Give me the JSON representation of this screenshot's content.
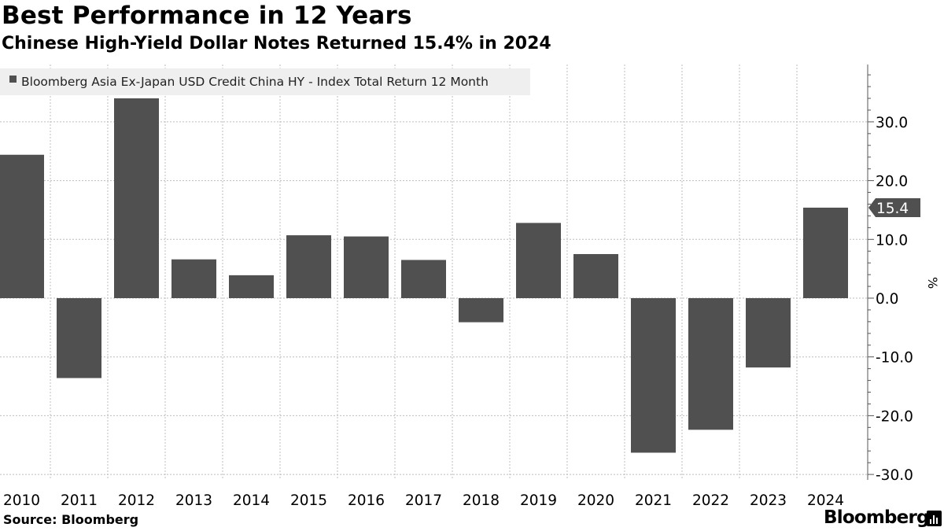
{
  "title": "Best Performance in 12 Years",
  "subtitle": "Chinese High-Yield Dollar Notes Returned 15.4% in 2024",
  "source": "Source: Bloomberg",
  "brand": "Bloomberg",
  "colors": {
    "bar": "#505050",
    "grid": "#bdbdbd",
    "legend_bg": "#efefef",
    "label_bg": "#505050"
  },
  "chart_data": {
    "type": "bar",
    "title": "Best Performance in 12 Years",
    "subtitle": "Chinese High-Yield Dollar Notes Returned 15.4% in 2024",
    "series_name": "Bloomberg Asia Ex-Japan USD Credit China HY - Index Total Return 12 Month",
    "categories": [
      "2010",
      "2011",
      "2012",
      "2013",
      "2014",
      "2015",
      "2016",
      "2017",
      "2018",
      "2019",
      "2020",
      "2021",
      "2022",
      "2023",
      "2024"
    ],
    "values": [
      24.4,
      -13.6,
      34.0,
      6.6,
      3.9,
      10.7,
      10.5,
      6.5,
      -4.1,
      12.8,
      7.5,
      -26.3,
      -22.4,
      -11.8,
      15.4
    ],
    "ylabel": "%",
    "yticks": [
      30.0,
      20.0,
      10.0,
      0.0,
      -10.0,
      -20.0,
      -30.0
    ],
    "ytick_labels": [
      "30.0",
      "20.0",
      "10.0",
      "0.0",
      "-10.0",
      "-20.0",
      "-30.0"
    ],
    "ylim": [
      -30.0,
      39.0
    ],
    "last_value_label": "15.4",
    "grid": true,
    "legend_position": "top-left"
  }
}
